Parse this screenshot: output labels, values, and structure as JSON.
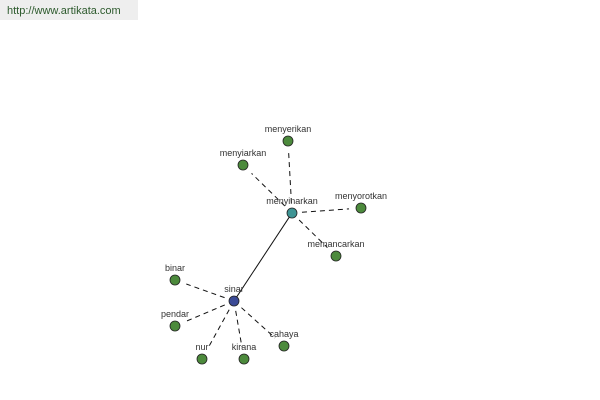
{
  "header": {
    "url_link": "http://www.artikata.com"
  },
  "colors": {
    "root": "#3b4a96",
    "secondary": "#3e9494",
    "leaf": "#4c8a3c",
    "edge": "#111111"
  },
  "nodes": [
    {
      "id": "sinar",
      "label": "sinar",
      "type": "root"
    },
    {
      "id": "menyinarkan",
      "label": "menyinarkan",
      "type": "secondary"
    },
    {
      "id": "menyerikan",
      "label": "menyerikan",
      "type": "leaf"
    },
    {
      "id": "menyiarkan",
      "label": "menyiarkan",
      "type": "leaf"
    },
    {
      "id": "menyorotkan",
      "label": "menyorotkan",
      "type": "leaf"
    },
    {
      "id": "memancarkan",
      "label": "memancarkan",
      "type": "leaf"
    },
    {
      "id": "binar",
      "label": "binar",
      "type": "leaf"
    },
    {
      "id": "pendar",
      "label": "pendar",
      "type": "leaf"
    },
    {
      "id": "nur",
      "label": "nur",
      "type": "leaf"
    },
    {
      "id": "kirana",
      "label": "kirana",
      "type": "leaf"
    },
    {
      "id": "cahaya",
      "label": "cahaya",
      "type": "leaf"
    }
  ],
  "edges": [
    {
      "source": "sinar",
      "target": "menyinarkan",
      "style": "solid"
    },
    {
      "source": "menyinarkan",
      "target": "menyerikan",
      "style": "dashed"
    },
    {
      "source": "menyinarkan",
      "target": "menyiarkan",
      "style": "dashed"
    },
    {
      "source": "menyinarkan",
      "target": "menyorotkan",
      "style": "dashed"
    },
    {
      "source": "menyinarkan",
      "target": "memancarkan",
      "style": "dashed"
    },
    {
      "source": "sinar",
      "target": "binar",
      "style": "dashed"
    },
    {
      "source": "sinar",
      "target": "pendar",
      "style": "dashed"
    },
    {
      "source": "sinar",
      "target": "nur",
      "style": "dashed"
    },
    {
      "source": "sinar",
      "target": "kirana",
      "style": "dashed"
    },
    {
      "source": "sinar",
      "target": "cahaya",
      "style": "dashed"
    }
  ]
}
